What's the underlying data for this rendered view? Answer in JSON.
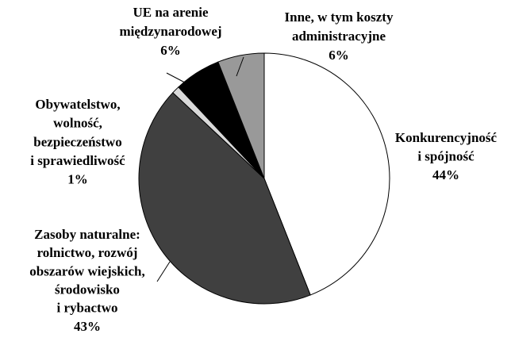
{
  "chart_data": {
    "type": "pie",
    "categories": [
      [
        "Konkurencyjność",
        "i spójność"
      ],
      [
        "Zasoby naturalne:",
        "rolnictwo, rozwój",
        "obszarów wiejskich,",
        "środowisko",
        "i rybactwo"
      ],
      [
        "Obywatelstwo,",
        "wolność,",
        "bezpieczeństwo",
        "i sprawiedliwość"
      ],
      [
        "UE na arenie",
        "międzynarodowej"
      ],
      [
        "Inne, w tym koszty",
        "administracyjne"
      ]
    ],
    "values": [
      44,
      43,
      1,
      6,
      6
    ],
    "value_labels": [
      "44%",
      "43%",
      "1%",
      "6%",
      "6%"
    ],
    "colors": [
      "#ffffff",
      "#404040",
      "#d9d9d9",
      "#000000",
      "#999999"
    ]
  }
}
